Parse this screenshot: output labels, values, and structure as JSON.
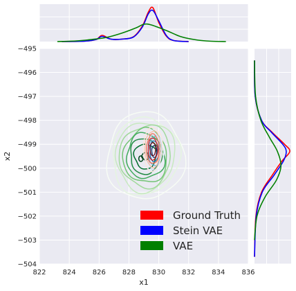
{
  "chart_data": {
    "type": "joint-kde",
    "xlabel": "x1",
    "ylabel": "x2",
    "xlim": [
      822,
      836
    ],
    "ylim": [
      -504,
      -495
    ],
    "x_ticks": [
      822,
      824,
      826,
      828,
      830,
      832,
      834,
      836
    ],
    "y_ticks": [
      -495,
      -496,
      -497,
      -498,
      -499,
      -500,
      -501,
      -502,
      -503,
      -504
    ],
    "x_tick_labels": [
      "822",
      "824",
      "826",
      "828",
      "830",
      "832",
      "834",
      "836"
    ],
    "y_tick_labels": [
      "−495",
      "−496",
      "−497",
      "−498",
      "−499",
      "−500",
      "−501",
      "−502",
      "−503",
      "−504"
    ],
    "grid": true,
    "background_color": "#EAEAF2",
    "legend_position": "bottom-right",
    "series": [
      {
        "name": "Ground Truth",
        "color": "#FF0000",
        "joint_center": [
          829.6,
          -499.2
        ],
        "joint_spread": [
          0.38,
          0.55
        ],
        "x_marginal": [
          {
            "x": 823.5,
            "y": 0.0
          },
          {
            "x": 825.0,
            "y": 0.01
          },
          {
            "x": 825.8,
            "y": 0.06
          },
          {
            "x": 826.2,
            "y": 0.18
          },
          {
            "x": 826.8,
            "y": 0.07
          },
          {
            "x": 827.5,
            "y": 0.07
          },
          {
            "x": 828.3,
            "y": 0.14
          },
          {
            "x": 828.9,
            "y": 0.45
          },
          {
            "x": 829.3,
            "y": 0.85
          },
          {
            "x": 829.6,
            "y": 0.98
          },
          {
            "x": 830.0,
            "y": 0.55
          },
          {
            "x": 830.5,
            "y": 0.16
          },
          {
            "x": 831.0,
            "y": 0.03
          },
          {
            "x": 832.0,
            "y": 0.0
          }
        ],
        "y_marginal": [
          {
            "y": -495.5,
            "x": 0.0
          },
          {
            "y": -497.0,
            "x": 0.02
          },
          {
            "y": -498.0,
            "x": 0.2
          },
          {
            "y": -498.5,
            "x": 0.5
          },
          {
            "y": -499.0,
            "x": 0.85
          },
          {
            "y": -499.3,
            "x": 1.0
          },
          {
            "y": -499.7,
            "x": 0.78
          },
          {
            "y": -500.3,
            "x": 0.5
          },
          {
            "y": -501.0,
            "x": 0.2
          },
          {
            "y": -502.0,
            "x": 0.04
          },
          {
            "y": -503.7,
            "x": 0.0
          }
        ]
      },
      {
        "name": "Stein VAE",
        "color": "#0000FF",
        "joint_center": [
          829.7,
          -499.3
        ],
        "joint_spread": [
          0.33,
          0.5
        ],
        "x_marginal": [
          {
            "x": 823.5,
            "y": 0.0
          },
          {
            "x": 825.0,
            "y": 0.01
          },
          {
            "x": 825.8,
            "y": 0.06
          },
          {
            "x": 826.2,
            "y": 0.15
          },
          {
            "x": 826.8,
            "y": 0.07
          },
          {
            "x": 827.5,
            "y": 0.07
          },
          {
            "x": 828.3,
            "y": 0.13
          },
          {
            "x": 828.9,
            "y": 0.42
          },
          {
            "x": 829.3,
            "y": 0.8
          },
          {
            "x": 829.6,
            "y": 0.9
          },
          {
            "x": 830.0,
            "y": 0.6
          },
          {
            "x": 830.5,
            "y": 0.18
          },
          {
            "x": 831.0,
            "y": 0.03
          },
          {
            "x": 832.0,
            "y": 0.0
          }
        ],
        "y_marginal": [
          {
            "y": -495.5,
            "x": 0.0
          },
          {
            "y": -497.0,
            "x": 0.02
          },
          {
            "y": -498.0,
            "x": 0.2
          },
          {
            "y": -498.5,
            "x": 0.48
          },
          {
            "y": -499.0,
            "x": 0.8
          },
          {
            "y": -499.3,
            "x": 0.9
          },
          {
            "y": -499.7,
            "x": 0.82
          },
          {
            "y": -500.3,
            "x": 0.55
          },
          {
            "y": -501.0,
            "x": 0.22
          },
          {
            "y": -502.0,
            "x": 0.05
          },
          {
            "y": -503.7,
            "x": 0.0
          }
        ]
      },
      {
        "name": "VAE",
        "color": "#008000",
        "joint_center": [
          829.1,
          -499.5
        ],
        "joint_spread": [
          1.1,
          0.8
        ],
        "x_marginal": [
          {
            "x": 823.2,
            "y": 0.0
          },
          {
            "x": 824.5,
            "y": 0.02
          },
          {
            "x": 825.5,
            "y": 0.06
          },
          {
            "x": 826.5,
            "y": 0.12
          },
          {
            "x": 827.5,
            "y": 0.24
          },
          {
            "x": 828.5,
            "y": 0.4
          },
          {
            "x": 829.0,
            "y": 0.5
          },
          {
            "x": 829.5,
            "y": 0.48
          },
          {
            "x": 830.5,
            "y": 0.32
          },
          {
            "x": 831.5,
            "y": 0.14
          },
          {
            "x": 832.5,
            "y": 0.05
          },
          {
            "x": 833.5,
            "y": 0.01
          },
          {
            "x": 834.5,
            "y": 0.0
          }
        ],
        "y_marginal": [
          {
            "y": -495.5,
            "x": 0.0
          },
          {
            "y": -497.0,
            "x": 0.03
          },
          {
            "y": -498.0,
            "x": 0.18
          },
          {
            "y": -498.7,
            "x": 0.42
          },
          {
            "y": -499.3,
            "x": 0.65
          },
          {
            "y": -499.9,
            "x": 0.75
          },
          {
            "y": -500.5,
            "x": 0.62
          },
          {
            "y": -501.2,
            "x": 0.3
          },
          {
            "y": -502.0,
            "x": 0.07
          },
          {
            "y": -503.0,
            "x": 0.0
          }
        ]
      }
    ],
    "contours": {
      "vae_levels": [
        1.0,
        0.82,
        0.66,
        0.52,
        0.4,
        0.29,
        0.2,
        0.13,
        0.07
      ],
      "vae_colors": [
        "#00441B",
        "#006D2C",
        "#238B45",
        "#41AB5D",
        "#74C476",
        "#A1D99B",
        "#C7E9C0",
        "#E5F5E0",
        "#F7FCF5"
      ],
      "stein_levels": [
        0.9,
        0.7,
        0.5,
        0.35,
        0.2
      ],
      "stein_colors": [
        "#08306B",
        "#2171B5",
        "#6BAED6",
        "#C6DBEF",
        "#E6F0FA"
      ],
      "truth_levels": [
        0.9,
        0.72,
        0.55,
        0.4,
        0.25
      ],
      "truth_colors": [
        "#67000D",
        "#CB181D",
        "#FB6A4A",
        "#FCBBA1",
        "#FEE5D9"
      ]
    }
  }
}
